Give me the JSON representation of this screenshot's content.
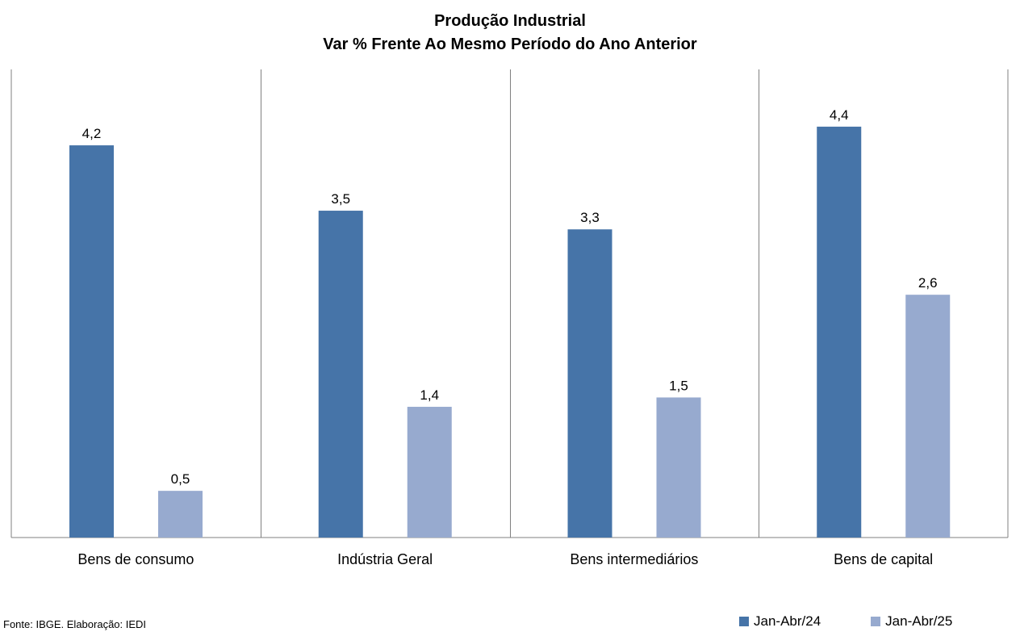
{
  "chart_data": {
    "type": "bar",
    "title": "Produção Industrial",
    "subtitle": "Var % Frente Ao Mesmo Período do Ano Anterior",
    "categories": [
      "Bens de consumo",
      "Indústria Geral",
      "Bens intermediários",
      "Bens de capital"
    ],
    "series": [
      {
        "name": "Jan-Abr/24",
        "values": [
          4.2,
          3.5,
          3.3,
          4.4
        ],
        "labels": [
          "4,2",
          "3,5",
          "3,3",
          "4,4"
        ],
        "color": "#4674A8"
      },
      {
        "name": "Jan-Abr/25",
        "values": [
          0.5,
          1.4,
          1.5,
          2.6
        ],
        "labels": [
          "0,5",
          "1,4",
          "1,5",
          "2,6"
        ],
        "color": "#97AACF"
      }
    ],
    "ylim": [
      0,
      5
    ],
    "grid": false,
    "legend_position": "bottom-right"
  },
  "source": "Fonte: IBGE. Elaboração: IEDI"
}
